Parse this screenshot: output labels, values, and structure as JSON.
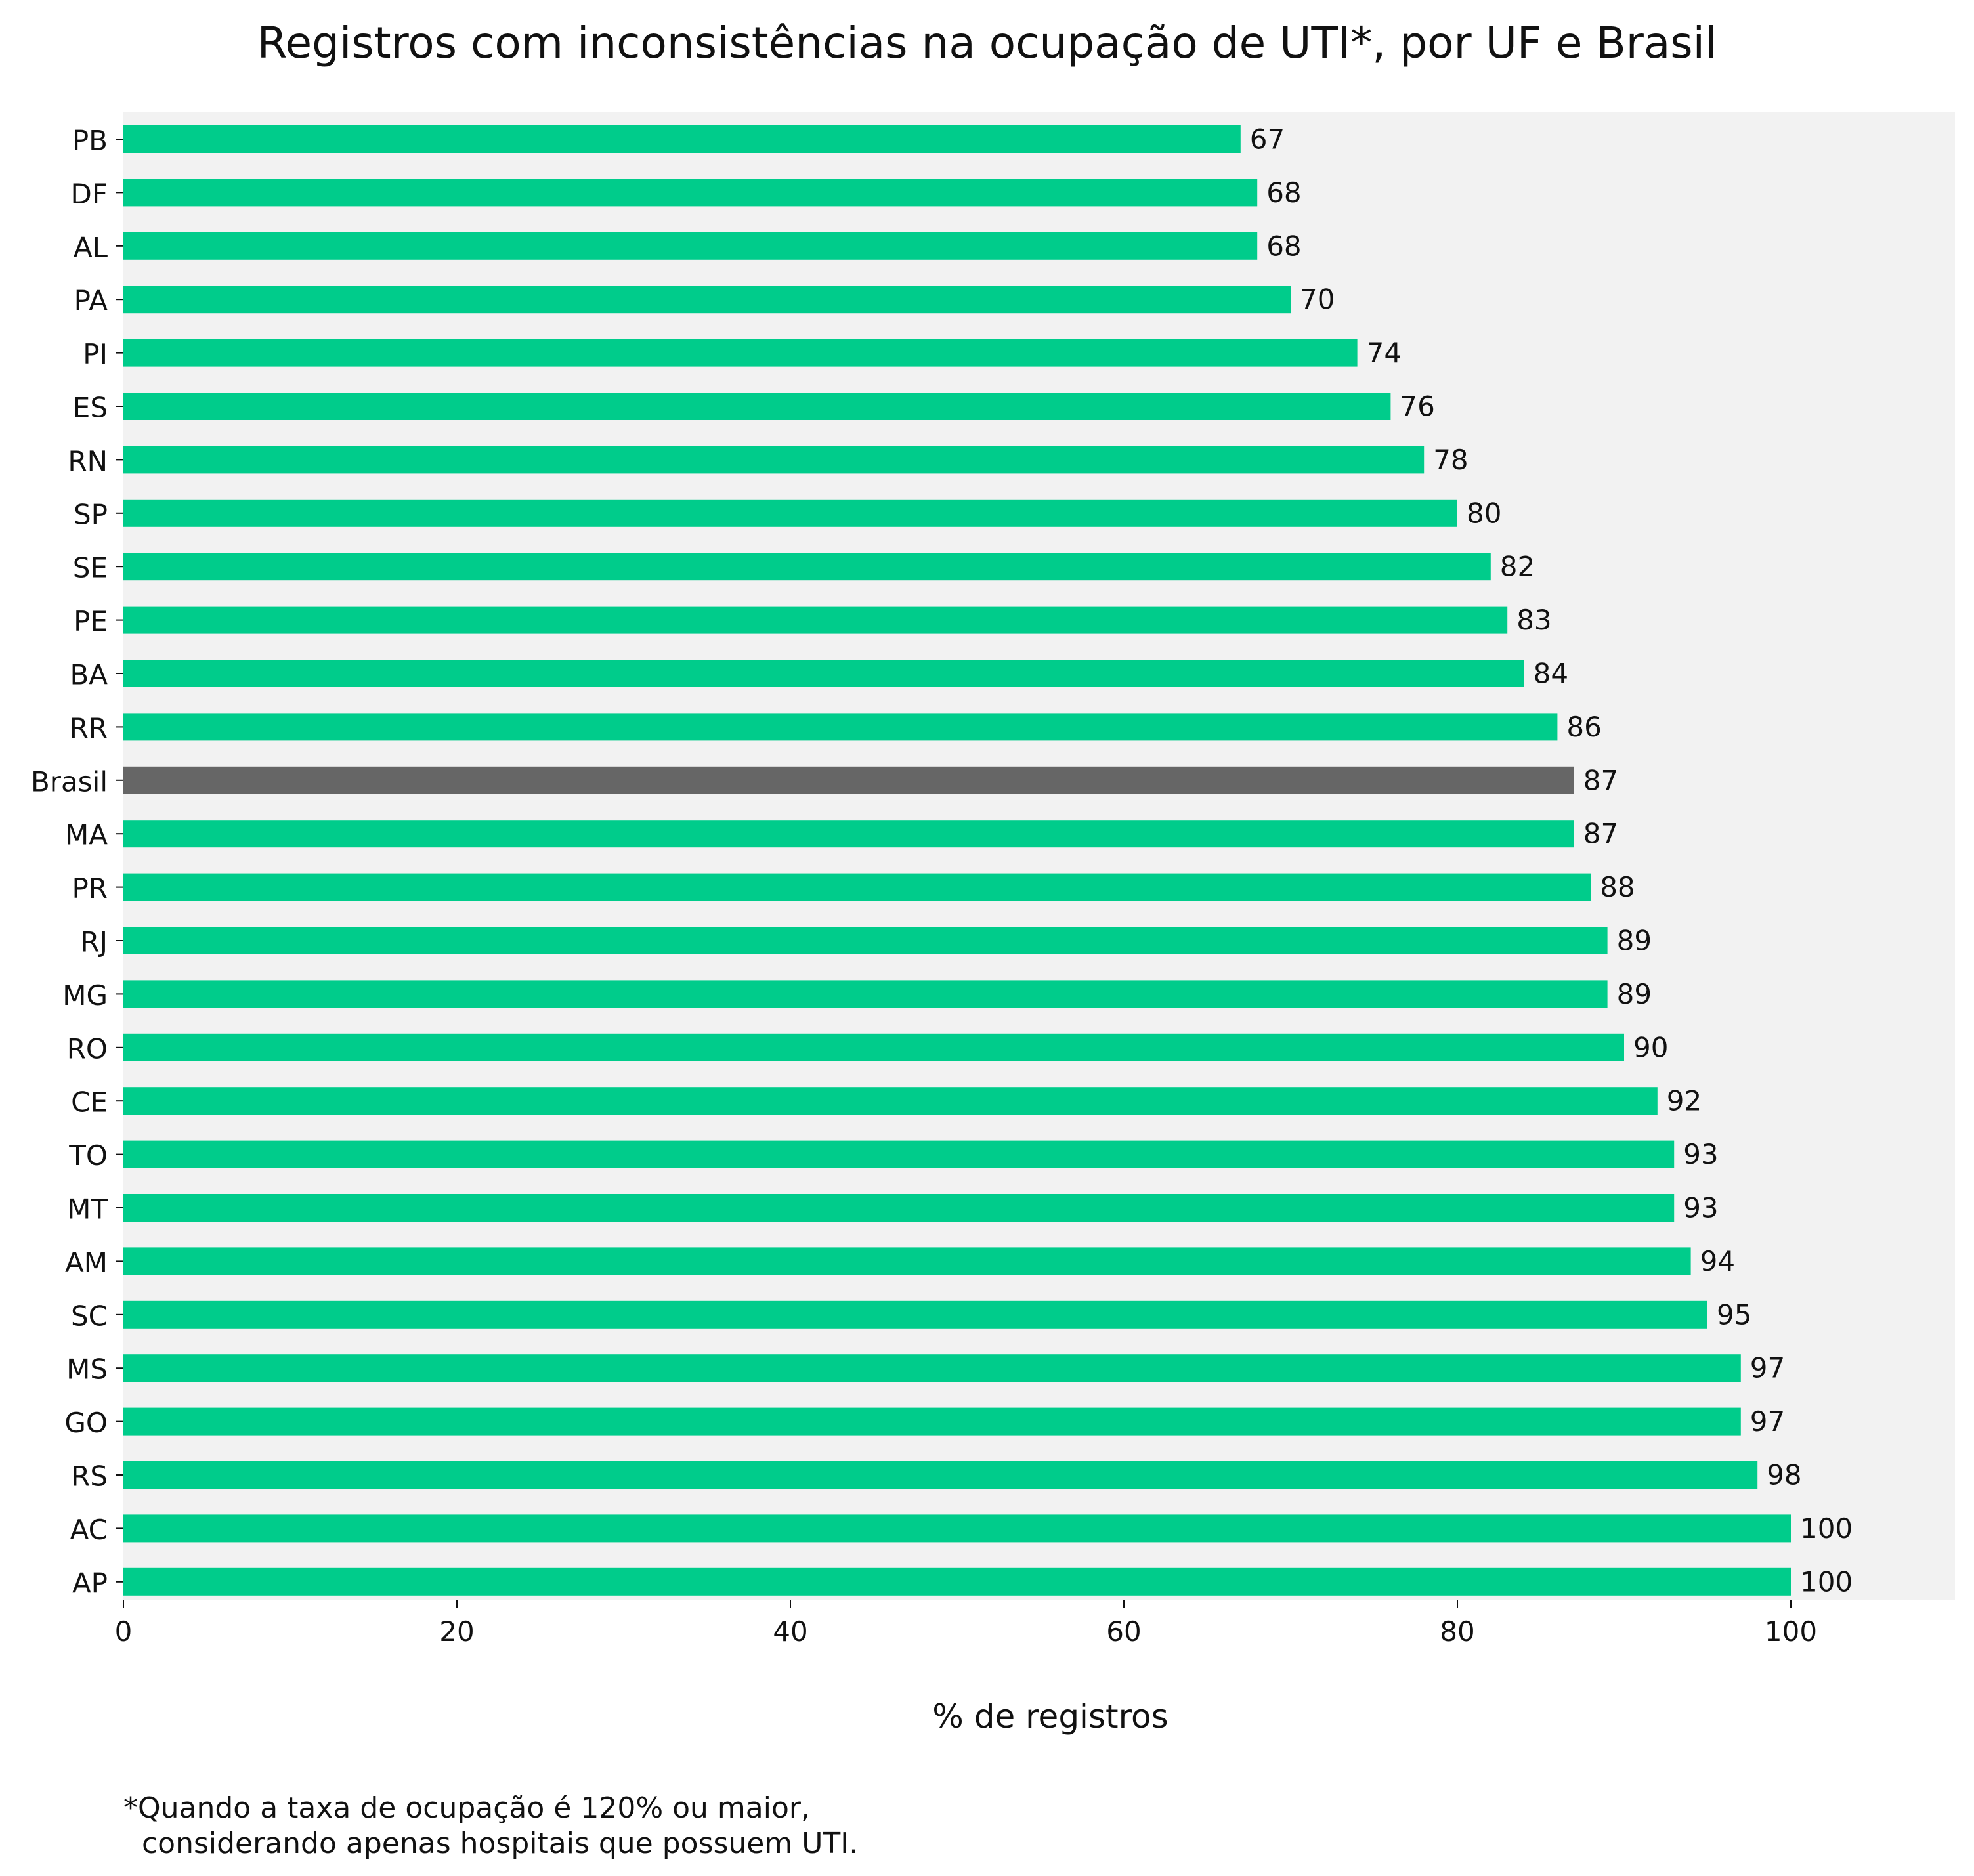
{
  "chart_data": {
    "type": "bar",
    "orientation": "horizontal",
    "title": "Registros com inconsistências na ocupação de UTI*, por UF e Brasil",
    "xlabel": "% de registros",
    "ylabel": "",
    "xlim": [
      0,
      110
    ],
    "xticks": [
      0,
      20,
      40,
      60,
      80,
      100
    ],
    "grid": false,
    "categories": [
      "PB",
      "DF",
      "AL",
      "PA",
      "PI",
      "ES",
      "RN",
      "SP",
      "SE",
      "PE",
      "BA",
      "RR",
      "Brasil",
      "MA",
      "PR",
      "RJ",
      "MG",
      "RO",
      "CE",
      "TO",
      "MT",
      "AM",
      "SC",
      "MS",
      "GO",
      "RS",
      "AC",
      "AP"
    ],
    "values": [
      67,
      68,
      68,
      70,
      74,
      76,
      78,
      80,
      82,
      83,
      84,
      86,
      87,
      87,
      88,
      89,
      89,
      90,
      92,
      93,
      93,
      94,
      95,
      97,
      97,
      98,
      100,
      100
    ],
    "highlight_category": "Brasil",
    "colors": {
      "bar": "#00cc8b",
      "highlight": "#666666",
      "plot_background": "#f2f2f2"
    }
  },
  "footnote": {
    "line1": "*Quando a taxa de ocupação é 120% ou maior,",
    "line2": "  considerando apenas hospitais que possuem UTI."
  }
}
